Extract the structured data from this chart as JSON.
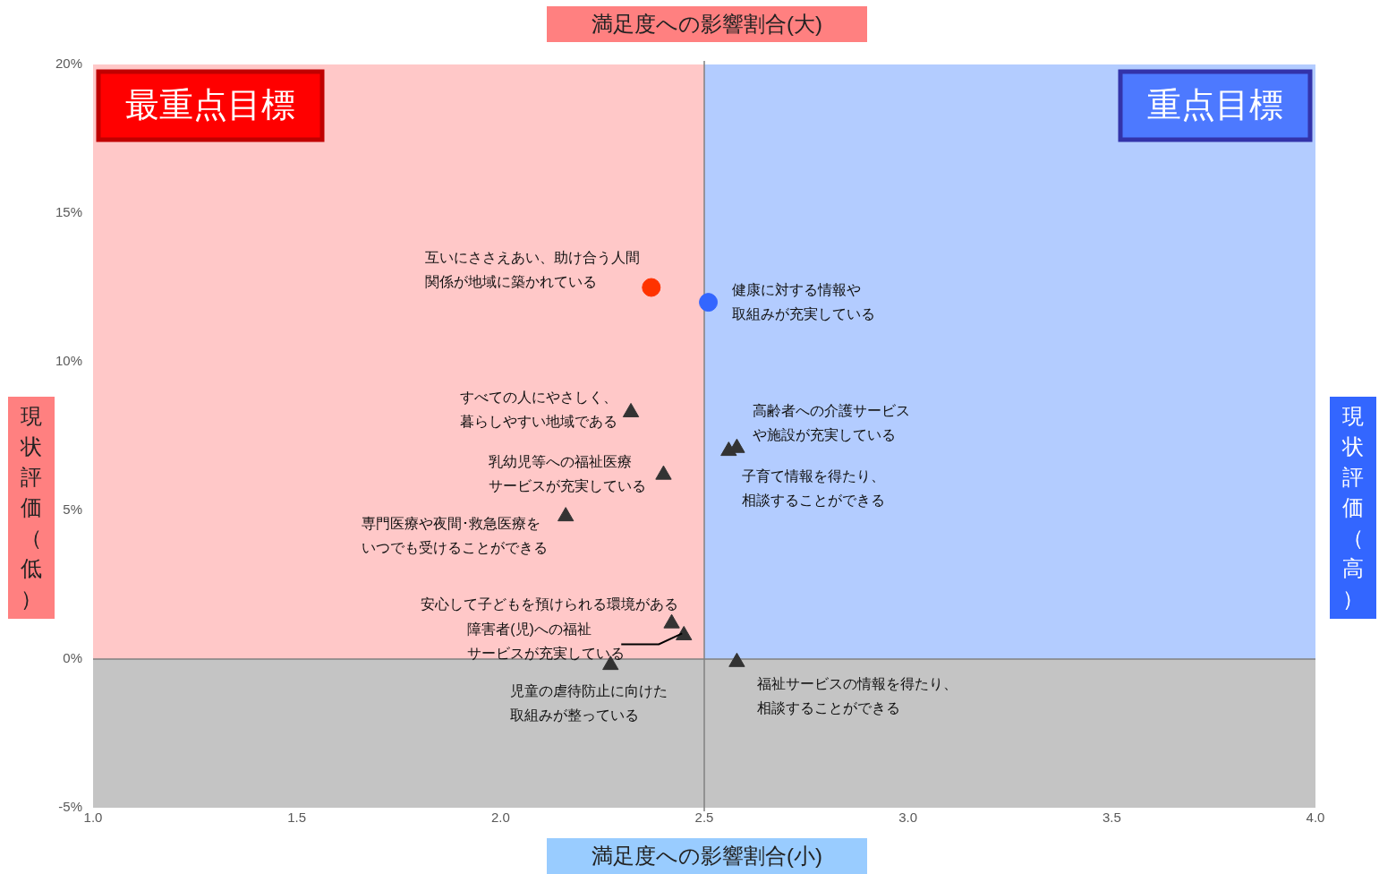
{
  "chart_data": {
    "type": "scatter",
    "xlabel": "満足度への影響割合(小)",
    "ylabel": "現状評価（低）",
    "y2label": "現状評価（高）",
    "annotations": [
      "満足度への影響割合(大)"
    ],
    "xlim": [
      1,
      4
    ],
    "xticks": [
      {
        "value": 1,
        "label": "1.0"
      },
      {
        "value": 1.5,
        "label": "1.5"
      },
      {
        "value": 2,
        "label": "2.0"
      },
      {
        "value": 2.5,
        "label": "2.5"
      },
      {
        "value": 3,
        "label": "3.0"
      },
      {
        "value": 3.5,
        "label": "3.5"
      },
      {
        "value": 4,
        "label": "4.0"
      }
    ],
    "ylim": [
      -5,
      20
    ],
    "yticks": [
      {
        "value": -5,
        "label": "-5%"
      },
      {
        "value": 0,
        "label": "0%"
      },
      {
        "value": 5,
        "label": "5%"
      },
      {
        "value": 10,
        "label": "10%"
      },
      {
        "value": 15,
        "label": "15%"
      },
      {
        "value": 20,
        "label": "20%"
      }
    ],
    "grid": false,
    "legend": false,
    "bands": [
      {
        "axis": "x",
        "from": 1,
        "to": 2.5,
        "color": "#ffc8c8",
        "label": "最重点目標"
      },
      {
        "axis": "x",
        "from": 2.5,
        "to": 4,
        "color": "#b3ccff",
        "label": "重点目標"
      },
      {
        "axis": "y",
        "from": -5,
        "to": 0,
        "color": "#c4c4c4"
      }
    ],
    "ref_lines": [
      {
        "axis": "x",
        "value": 2.5,
        "color": "#808080"
      },
      {
        "axis": "y",
        "value": 0,
        "color": "#808080"
      }
    ],
    "series": [
      {
        "name": "互いにささえあい、助け合う人間関係が地域に築かれている",
        "color": "#ff3300",
        "marker": "circle",
        "x": [
          2.37
        ],
        "values": [
          12.5
        ]
      },
      {
        "name": "健康に対する情報や取組みが充実している",
        "color": "#3366ff",
        "marker": "circle",
        "x": [
          2.51
        ],
        "values": [
          12.0
        ]
      },
      {
        "name": "すべての人にやさしく、暮らしやすい地域である",
        "color": "#333333",
        "marker": "triangle",
        "x": [
          2.32
        ],
        "values": [
          8.3
        ]
      },
      {
        "name": "乳幼児等への福祉医療サービスが充実している",
        "color": "#333333",
        "marker": "triangle",
        "x": [
          2.4
        ],
        "values": [
          6.2
        ]
      },
      {
        "name": "専門医療や夜間･救急医療をいつでも受けることができる",
        "color": "#333333",
        "marker": "triangle",
        "x": [
          2.16
        ],
        "values": [
          4.8
        ]
      },
      {
        "name": "高齢者への介護サービスや施設が充実している",
        "color": "#333333",
        "marker": "triangle",
        "x": [
          2.58
        ],
        "values": [
          7.1
        ]
      },
      {
        "name": "子育て情報を得たり、相談することができる",
        "color": "#333333",
        "marker": "triangle",
        "x": [
          2.56
        ],
        "values": [
          7.0
        ]
      },
      {
        "name": "安心して子どもを預けられる環境がある",
        "color": "#333333",
        "marker": "triangle",
        "x": [
          2.42
        ],
        "values": [
          1.2
        ]
      },
      {
        "name": "障害者(児)への福祉サービスが充実している",
        "color": "#333333",
        "marker": "triangle",
        "x": [
          2.45
        ],
        "values": [
          0.8
        ]
      },
      {
        "name": "児童の虐待防止に向けた取組みが整っている",
        "color": "#333333",
        "marker": "triangle",
        "x": [
          2.27
        ],
        "values": [
          -0.2
        ]
      },
      {
        "name": "福祉サービスの情報を得たり、相談することができる",
        "color": "#333333",
        "marker": "triangle",
        "x": [
          2.58
        ],
        "values": [
          -0.1
        ]
      }
    ]
  }
}
